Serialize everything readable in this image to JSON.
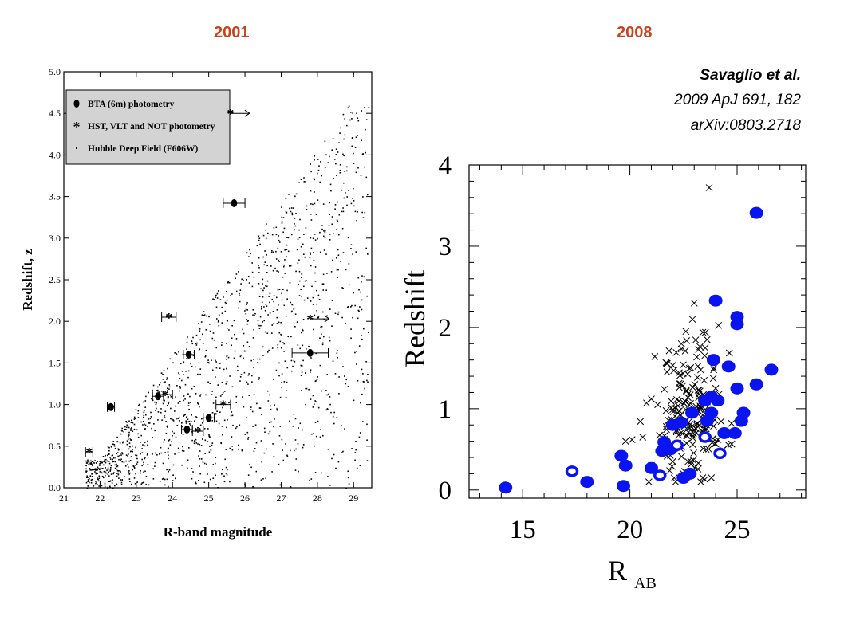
{
  "header": {
    "year_left": "2001",
    "year_right": "2008",
    "citation_authors": "Savaglio et al.",
    "citation_journal": "2009 ApJ 691, 182",
    "citation_arxiv": "arXiv:0803.2718"
  },
  "colors": {
    "year_text": "#c8441e",
    "blue_points": "#0a14f0",
    "black": "#000000"
  },
  "chart_data": [
    {
      "type": "scatter",
      "title": "",
      "xlabel": "R-band magnitude",
      "ylabel": "Redshift, z",
      "xlim": [
        21,
        29.5
      ],
      "ylim": [
        0.0,
        5.0
      ],
      "x_ticks": [
        "21",
        "22",
        "23",
        "24",
        "25",
        "26",
        "27",
        "28",
        "29"
      ],
      "y_ticks": [
        "0.0",
        "0.5",
        "1.0",
        "1.5",
        "2.0",
        "2.5",
        "3.0",
        "3.5",
        "4.0",
        "4.5",
        "5.0"
      ],
      "legend": {
        "position": "top-left",
        "entries": [
          {
            "marker": "filled-circle",
            "label": "BTA (6m) photometry"
          },
          {
            "marker": "asterisk",
            "label": "HST, VLT and NOT photometry"
          },
          {
            "marker": "dot",
            "label": "Hubble Deep Field (F606W)"
          }
        ]
      },
      "series": [
        {
          "name": "BTA (6m) photometry",
          "marker": "filled-circle",
          "points": [
            {
              "x": 22.3,
              "y": 0.97,
              "xerr": 0.1
            },
            {
              "x": 23.6,
              "y": 1.1,
              "xerr": 0.15
            },
            {
              "x": 24.45,
              "y": 1.6,
              "xerr": 0.15
            },
            {
              "x": 25.7,
              "y": 3.42,
              "xerr": 0.3
            },
            {
              "x": 24.4,
              "y": 0.7,
              "xerr": 0.15
            },
            {
              "x": 25.0,
              "y": 0.84,
              "xerr": 0.15
            },
            {
              "x": 27.8,
              "y": 1.62,
              "xerr": 0.5
            }
          ]
        },
        {
          "name": "HST, VLT and NOT photometry",
          "marker": "asterisk",
          "points": [
            {
              "x": 21.7,
              "y": 0.43,
              "xerr": 0.1
            },
            {
              "x": 23.9,
              "y": 2.05,
              "xerr": 0.2
            },
            {
              "x": 23.8,
              "y": 1.12,
              "xerr": 0.2
            },
            {
              "x": 24.7,
              "y": 0.68,
              "xerr": 0.15
            },
            {
              "x": 25.4,
              "y": 1.0,
              "xerr": 0.2
            },
            {
              "x": 25.6,
              "y": 4.5,
              "xerr": 0.0,
              "lower_limit": true
            },
            {
              "x": 27.8,
              "y": 2.03,
              "xerr": 0.0,
              "lower_limit": true
            }
          ]
        }
      ]
    },
    {
      "type": "scatter",
      "title": "",
      "xlabel": "R",
      "xlabel_subscript": "AB",
      "ylabel": "Redshift",
      "xlim": [
        12.5,
        28.2
      ],
      "ylim": [
        -0.1,
        4.0
      ],
      "x_ticks": [
        "15",
        "20",
        "25"
      ],
      "y_ticks": [
        "0",
        "1",
        "2",
        "3",
        "4"
      ],
      "series": [
        {
          "name": "",
          "marker": "filled-circle",
          "color": "#0a14f0",
          "points": [
            {
              "x": 14.2,
              "y": 0.03
            },
            {
              "x": 18.0,
              "y": 0.1
            },
            {
              "x": 19.6,
              "y": 0.42
            },
            {
              "x": 19.8,
              "y": 0.3
            },
            {
              "x": 19.7,
              "y": 0.05
            },
            {
              "x": 21.0,
              "y": 0.27
            },
            {
              "x": 21.6,
              "y": 0.59
            },
            {
              "x": 21.5,
              "y": 0.48
            },
            {
              "x": 21.9,
              "y": 0.5
            },
            {
              "x": 22.0,
              "y": 0.8
            },
            {
              "x": 22.4,
              "y": 0.83
            },
            {
              "x": 22.9,
              "y": 0.95
            },
            {
              "x": 22.5,
              "y": 0.15
            },
            {
              "x": 22.8,
              "y": 0.2
            },
            {
              "x": 23.8,
              "y": 0.95
            },
            {
              "x": 23.6,
              "y": 0.85
            },
            {
              "x": 23.5,
              "y": 1.1
            },
            {
              "x": 23.8,
              "y": 1.15
            },
            {
              "x": 24.1,
              "y": 1.1
            },
            {
              "x": 23.9,
              "y": 1.6
            },
            {
              "x": 24.6,
              "y": 1.52
            },
            {
              "x": 24.0,
              "y": 2.33
            },
            {
              "x": 25.0,
              "y": 2.13
            },
            {
              "x": 25.0,
              "y": 2.04
            },
            {
              "x": 25.0,
              "y": 1.25
            },
            {
              "x": 25.9,
              "y": 1.3
            },
            {
              "x": 26.6,
              "y": 1.48
            },
            {
              "x": 25.3,
              "y": 0.95
            },
            {
              "x": 25.2,
              "y": 0.85
            },
            {
              "x": 24.4,
              "y": 0.7
            },
            {
              "x": 24.9,
              "y": 0.7
            },
            {
              "x": 25.9,
              "y": 3.41
            }
          ]
        },
        {
          "name": "",
          "marker": "open-circle",
          "color": "#0a14f0",
          "points": [
            {
              "x": 17.3,
              "y": 0.23
            },
            {
              "x": 21.4,
              "y": 0.18
            },
            {
              "x": 22.2,
              "y": 0.55
            },
            {
              "x": 23.5,
              "y": 0.65
            },
            {
              "x": 24.2,
              "y": 0.45
            }
          ]
        }
      ]
    }
  ]
}
